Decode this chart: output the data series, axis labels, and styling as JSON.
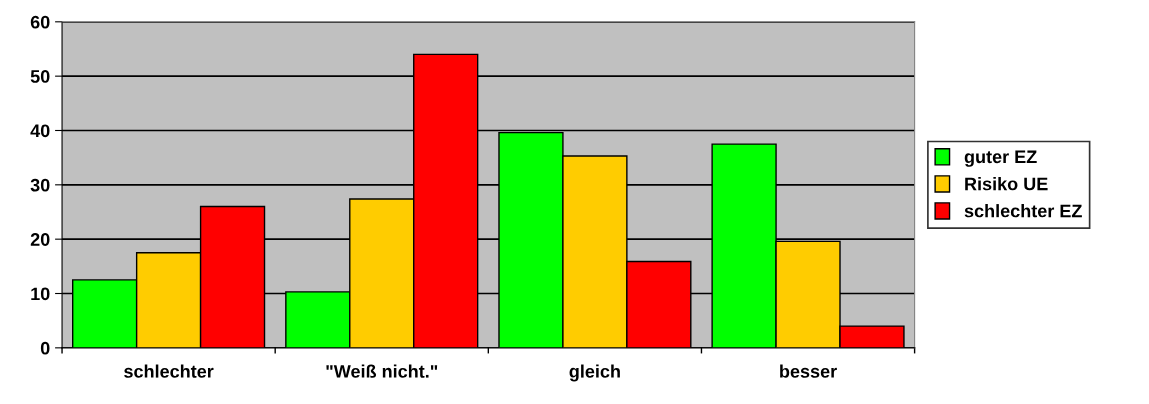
{
  "chart_data": {
    "type": "bar",
    "categories": [
      "schlechter",
      "\"Weiß nicht.\"",
      "gleich",
      "besser"
    ],
    "series": [
      {
        "name": "guter EZ",
        "color": "#00ff00",
        "values": [
          12.5,
          10.3,
          39.6,
          37.5
        ]
      },
      {
        "name": "Risiko UE",
        "color": "#ffcc00",
        "values": [
          17.5,
          27.4,
          35.3,
          19.6
        ]
      },
      {
        "name": "schlechter EZ",
        "color": "#ff0000",
        "values": [
          26,
          54,
          15.9,
          4
        ]
      }
    ],
    "ylim": [
      0,
      60
    ],
    "yticks": [
      0,
      10,
      20,
      30,
      40,
      50,
      60
    ],
    "grid": "y",
    "legend": "right"
  }
}
